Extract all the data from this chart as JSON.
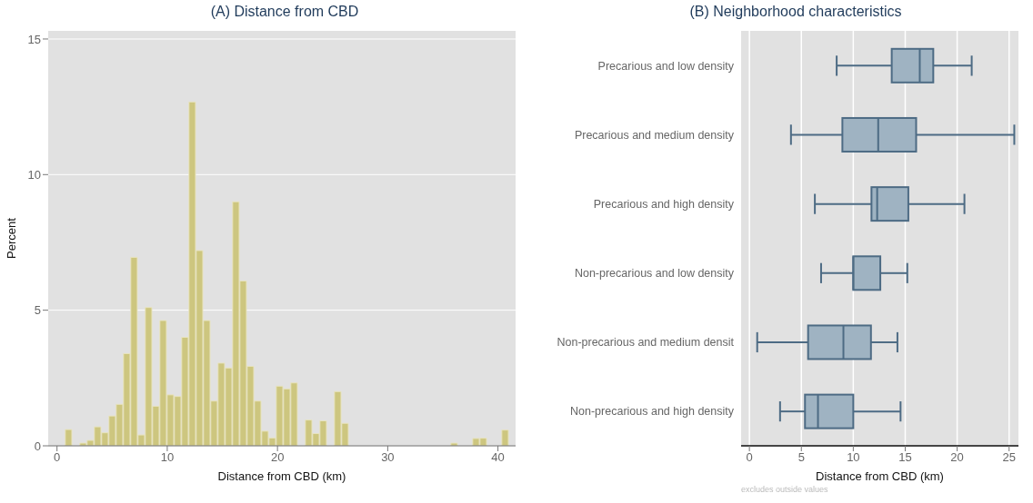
{
  "chart_data": [
    {
      "type": "histogram",
      "title": "(A) Distance from CBD",
      "xlabel": "Distance from CBD (km)",
      "ylabel": "Percent",
      "color": "#cdc67f",
      "bins": [
        0.75,
        1.41,
        2.07,
        2.73,
        3.39,
        4.05,
        4.71,
        5.37,
        6.03,
        6.69,
        7.35,
        8.01,
        8.67,
        9.33,
        9.99,
        10.65,
        11.31,
        11.97,
        12.63,
        13.29,
        13.95,
        14.61,
        15.27,
        15.93,
        16.59,
        17.25,
        17.91,
        18.57,
        19.23,
        19.89,
        20.55,
        21.21,
        21.87,
        22.53,
        23.19,
        23.85,
        24.51,
        25.17,
        25.83,
        26.49,
        27.15,
        27.81,
        28.47,
        29.13,
        29.79,
        30.45,
        31.11,
        31.77,
        32.43,
        33.09,
        33.75,
        34.41,
        35.07,
        35.73,
        36.39,
        37.05,
        37.71,
        38.37,
        39.03,
        39.69,
        40.35,
        41.01
      ],
      "values": [
        0.6,
        0,
        0.1,
        0.2,
        0.7,
        0.48,
        1.1,
        1.53,
        3.4,
        6.95,
        0.4,
        5.1,
        1.46,
        4.62,
        1.88,
        1.82,
        4.0,
        12.68,
        7.2,
        4.62,
        1.65,
        3.05,
        2.87,
        9.0,
        6.08,
        2.93,
        1.65,
        0.54,
        0.29,
        2.2,
        2.1,
        2.32,
        0,
        0.95,
        0.45,
        0.92,
        0,
        2.0,
        0.83,
        0,
        0,
        0,
        0,
        0,
        0,
        0,
        0,
        0,
        0,
        0,
        0,
        0,
        0,
        0.1,
        0,
        0,
        0.27,
        0.28,
        0,
        0,
        0.58
      ],
      "xlim": [
        -0.8,
        41.6
      ],
      "xticks": [
        0,
        10,
        20,
        30,
        40
      ],
      "ylim": [
        0,
        15.3
      ],
      "yticks": [
        0,
        5,
        10,
        15
      ],
      "grid": "y"
    },
    {
      "type": "box",
      "title": "(B) Neighborhood characteristics",
      "xlabel": "Distance from CBD (km)",
      "orientation": "horizontal",
      "color": "#9fb3c2",
      "categories": [
        "Precarious and low density",
        "Precarious and medium density",
        "Precarious and high density",
        "Non-precarious and low density",
        "Non-precarious and medium densit",
        "Non-precarious and high density"
      ],
      "boxes": [
        {
          "low": 8.4,
          "q1": 13.7,
          "median": 16.4,
          "q3": 17.7,
          "high": 21.4
        },
        {
          "low": 4.0,
          "q1": 8.95,
          "median": 12.4,
          "q3": 16.05,
          "high": 25.5
        },
        {
          "low": 6.3,
          "q1": 11.75,
          "median": 12.3,
          "q3": 15.3,
          "high": 20.7
        },
        {
          "low": 6.9,
          "q1": 10.0,
          "median": 10.0,
          "q3": 12.6,
          "high": 15.2
        },
        {
          "low": 0.75,
          "q1": 5.65,
          "median": 9.05,
          "q3": 11.7,
          "high": 14.25
        },
        {
          "low": 2.95,
          "q1": 5.35,
          "median": 6.6,
          "q3": 10.0,
          "high": 14.55
        }
      ],
      "xlim": [
        -0.8,
        25.9
      ],
      "xticks": [
        0,
        5,
        10,
        15,
        20,
        25
      ],
      "grid": "x",
      "annotations": [
        "excludes outside values"
      ]
    }
  ]
}
